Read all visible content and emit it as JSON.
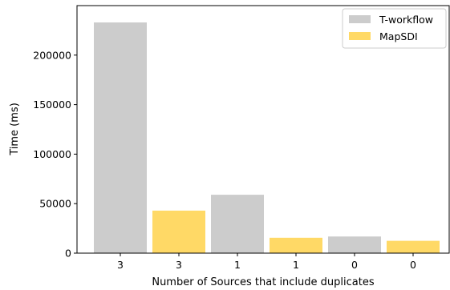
{
  "chart_data": {
    "type": "bar",
    "xlabel": "Number of Sources that include duplicates",
    "ylabel": "Time (ms)",
    "ylim": [
      0,
      250000
    ],
    "yticks": [
      0,
      50000,
      100000,
      150000,
      200000
    ],
    "grid": false,
    "legend_position": "top-right",
    "bars": [
      {
        "label": "3",
        "series": "T-workflow",
        "value": 233000
      },
      {
        "label": "3",
        "series": "MapSDI",
        "value": 43000
      },
      {
        "label": "1",
        "series": "T-workflow",
        "value": 59000
      },
      {
        "label": "1",
        "series": "MapSDI",
        "value": 15500
      },
      {
        "label": "0",
        "series": "T-workflow",
        "value": 16800
      },
      {
        "label": "0",
        "series": "MapSDI",
        "value": 12500
      }
    ],
    "series": [
      {
        "name": "T-workflow",
        "color": "#cccccc"
      },
      {
        "name": "MapSDI",
        "color": "#ffd966"
      }
    ]
  }
}
